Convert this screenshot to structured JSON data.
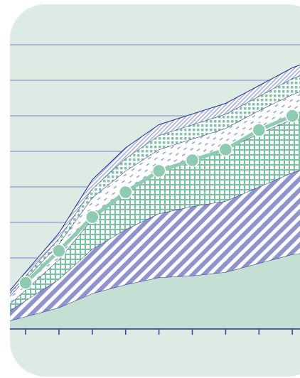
{
  "chart_data": {
    "type": "area",
    "title": "",
    "xlabel": "",
    "ylabel": "",
    "grid": true,
    "x": [
      1,
      2,
      3,
      4,
      5,
      6,
      7,
      8,
      9,
      10
    ],
    "ylim": [
      0,
      8
    ],
    "series": [
      {
        "values": [
          0.35,
          0.6,
          1.0,
          1.25,
          1.45,
          1.5,
          1.6,
          1.85,
          2.1,
          2.2
        ],
        "fill": "solid",
        "color": "#c5dfd4"
      },
      {
        "values": [
          0.45,
          0.8,
          1.25,
          1.55,
          1.8,
          1.95,
          2.0,
          2.15,
          2.3,
          2.5
        ],
        "fill": "diagonal",
        "color": "#8f95cc"
      },
      {
        "values": [
          0.3,
          0.55,
          0.85,
          1.0,
          1.2,
          1.3,
          1.45,
          1.5,
          1.5,
          1.6
        ],
        "fill": "grid",
        "color": "#79c3a2"
      },
      {
        "values": [
          0.3,
          0.45,
          0.6,
          0.65,
          0.6,
          0.6,
          0.6,
          0.65,
          0.7,
          0.65
        ],
        "fill": "dashed",
        "color": "#9aa6d4"
      },
      {
        "values": [
          0.1,
          0.15,
          0.25,
          0.35,
          0.4,
          0.4,
          0.4,
          0.4,
          0.45,
          0.45
        ],
        "fill": "dotted",
        "color": "#7fc4a5"
      },
      {
        "values": [
          0.1,
          0.15,
          0.25,
          0.3,
          0.3,
          0.3,
          0.3,
          0.3,
          0.3,
          0.3
        ],
        "fill": "fine-diagonal",
        "color": "#a7b0dc"
      }
    ],
    "line_series": {
      "values": [
        1.3,
        2.2,
        3.15,
        3.85,
        4.45,
        4.75,
        5.05,
        5.6,
        6.0,
        6.3
      ],
      "color": "#8fcbb0"
    },
    "colors": {
      "panel": "#dcebe4",
      "gridline": "#9ea6d6",
      "axis": "#3f4a9c",
      "stroke": "#24308a"
    }
  }
}
